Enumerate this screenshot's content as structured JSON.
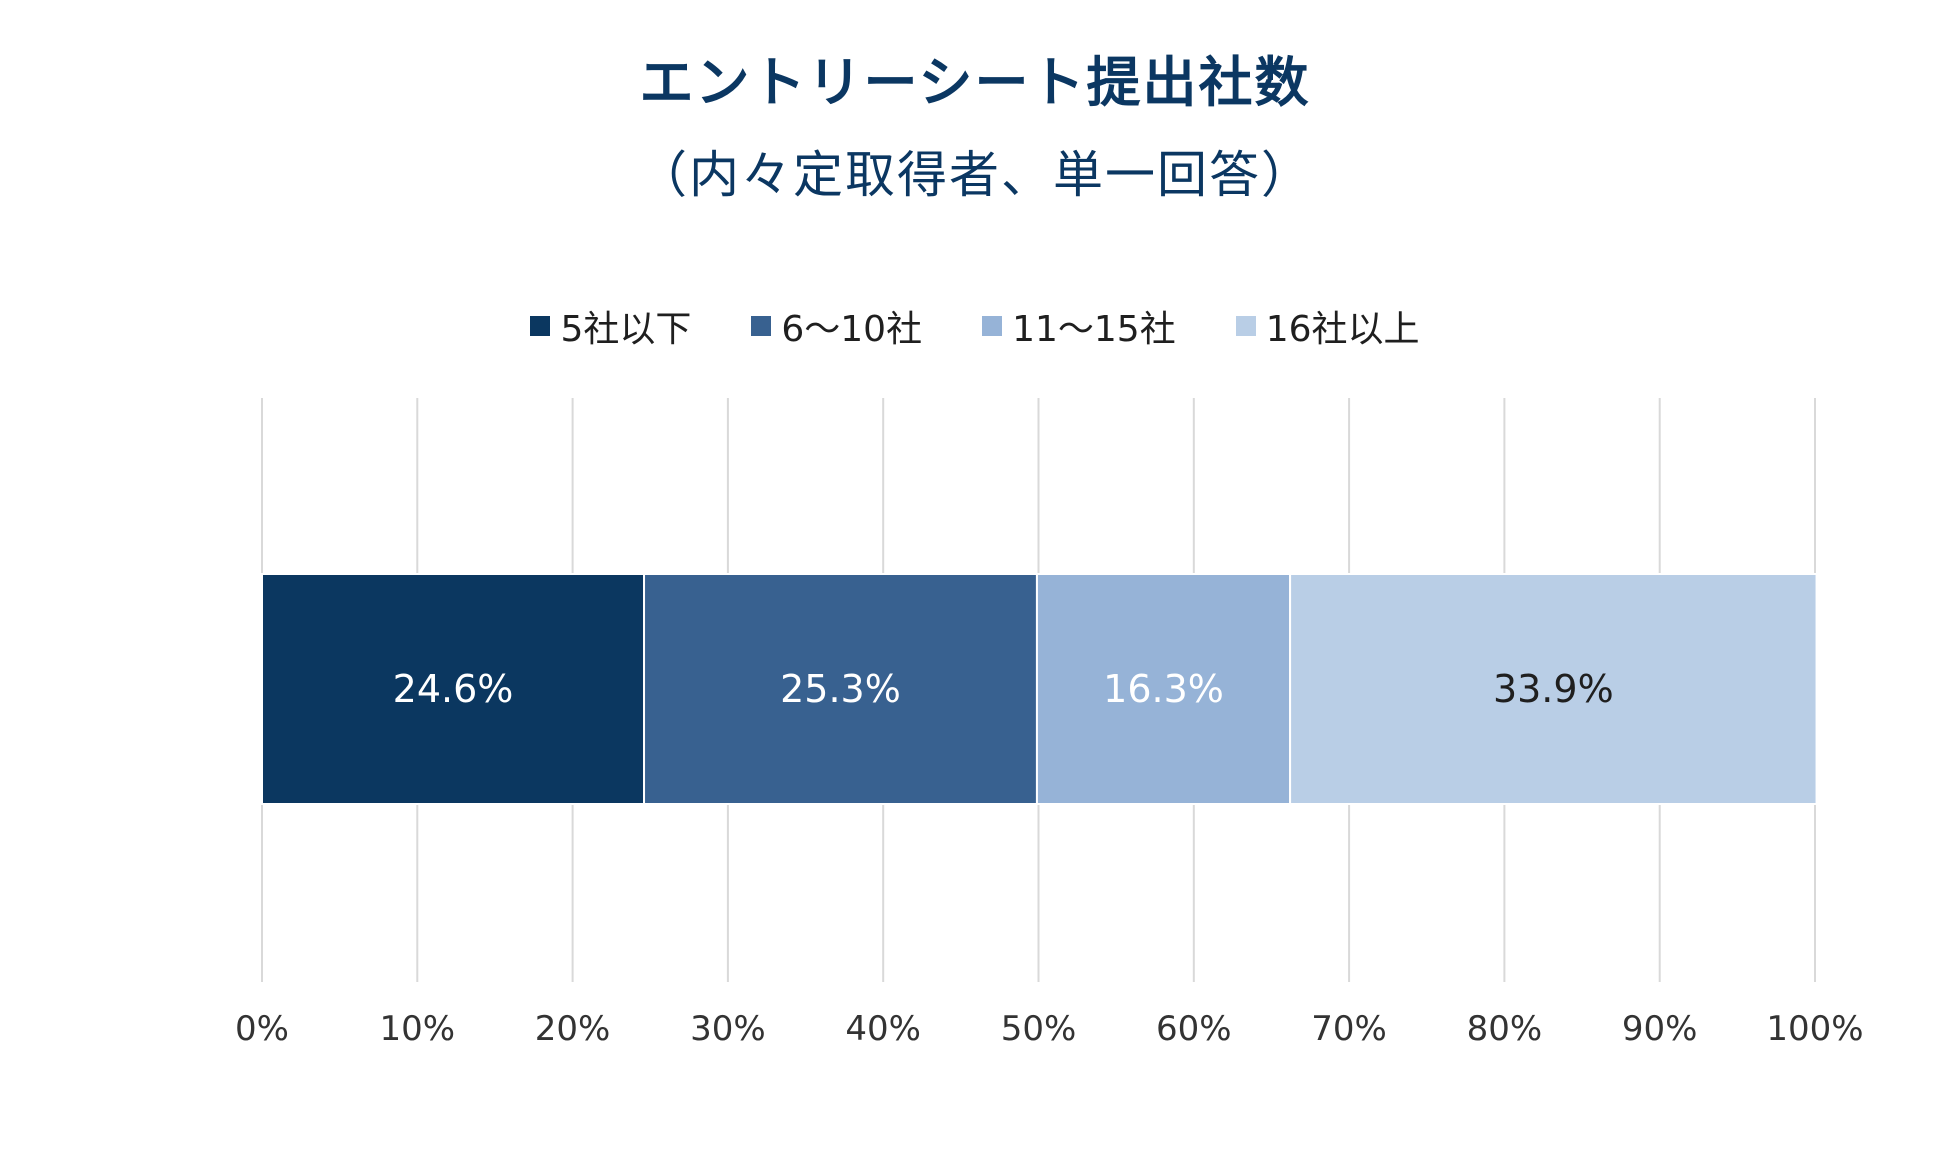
{
  "chart_data": {
    "type": "bar",
    "orientation": "horizontal",
    "stacked": "percent",
    "title": "エントリーシート提出社数",
    "subtitle": "（内々定取得者、単一回答）",
    "categories": [
      ""
    ],
    "series": [
      {
        "name": "5社以下",
        "values": [
          24.6
        ],
        "label": "24.6%",
        "color": "#0b3760",
        "label_color": "#ffffff"
      },
      {
        "name": "6〜10社",
        "values": [
          25.3
        ],
        "label": "25.3%",
        "color": "#386190",
        "label_color": "#ffffff"
      },
      {
        "name": "11〜15社",
        "values": [
          16.3
        ],
        "label": "16.3%",
        "color": "#96b3d7",
        "label_color": "#ffffff"
      },
      {
        "name": "16社以上",
        "values": [
          33.9
        ],
        "label": "33.9%",
        "color": "#b9cee6",
        "label_color": "#1f1f1f"
      }
    ],
    "xlim": [
      0,
      100
    ],
    "xticks": [
      "0%",
      "10%",
      "20%",
      "30%",
      "40%",
      "50%",
      "60%",
      "70%",
      "80%",
      "90%",
      "100%"
    ],
    "legend_position": "top",
    "grid": true
  }
}
